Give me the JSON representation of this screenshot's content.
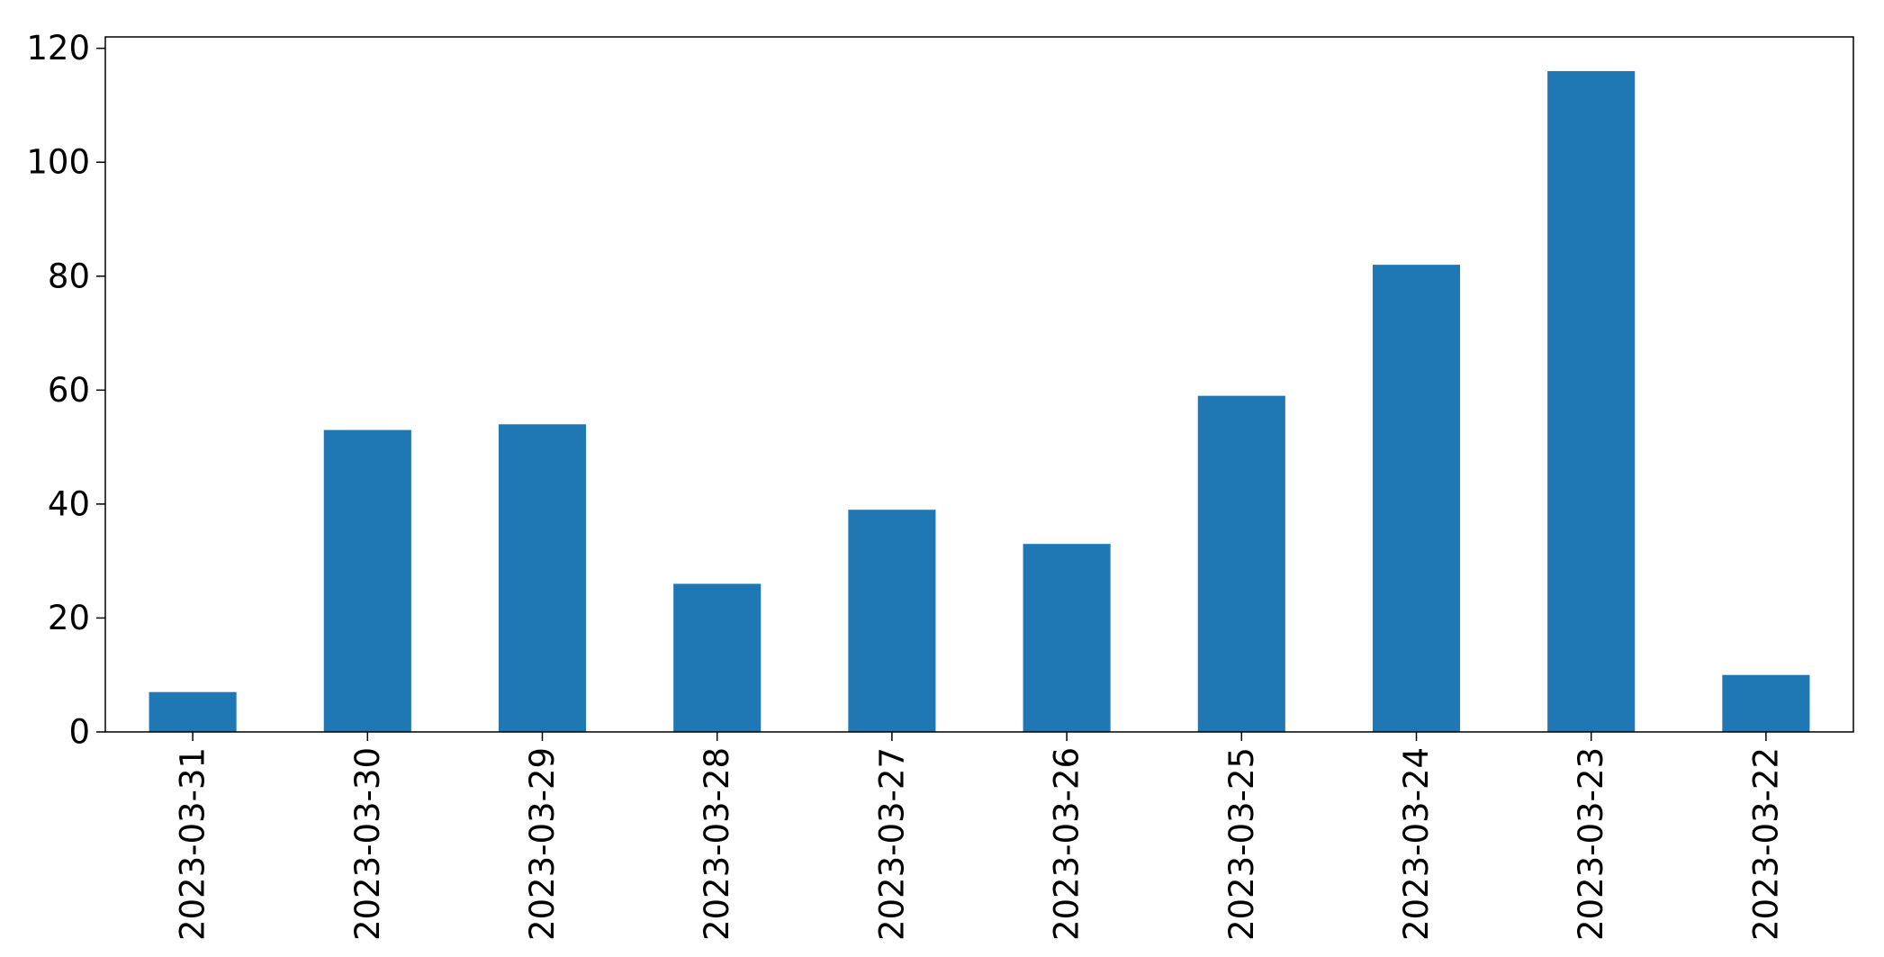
{
  "chart_data": {
    "type": "bar",
    "categories": [
      "2023-03-31",
      "2023-03-30",
      "2023-03-29",
      "2023-03-28",
      "2023-03-27",
      "2023-03-26",
      "2023-03-25",
      "2023-03-24",
      "2023-03-23",
      "2023-03-22"
    ],
    "values": [
      7,
      53,
      54,
      26,
      39,
      33,
      59,
      82,
      116,
      10
    ],
    "title": "",
    "xlabel": "",
    "ylabel": "",
    "ylim": [
      0,
      122
    ],
    "yticks": [
      0,
      20,
      40,
      60,
      80,
      100,
      120
    ],
    "grid": false,
    "legend": "none",
    "bar_color": "#1f77b4",
    "x_tick_rotation": "vertical"
  }
}
